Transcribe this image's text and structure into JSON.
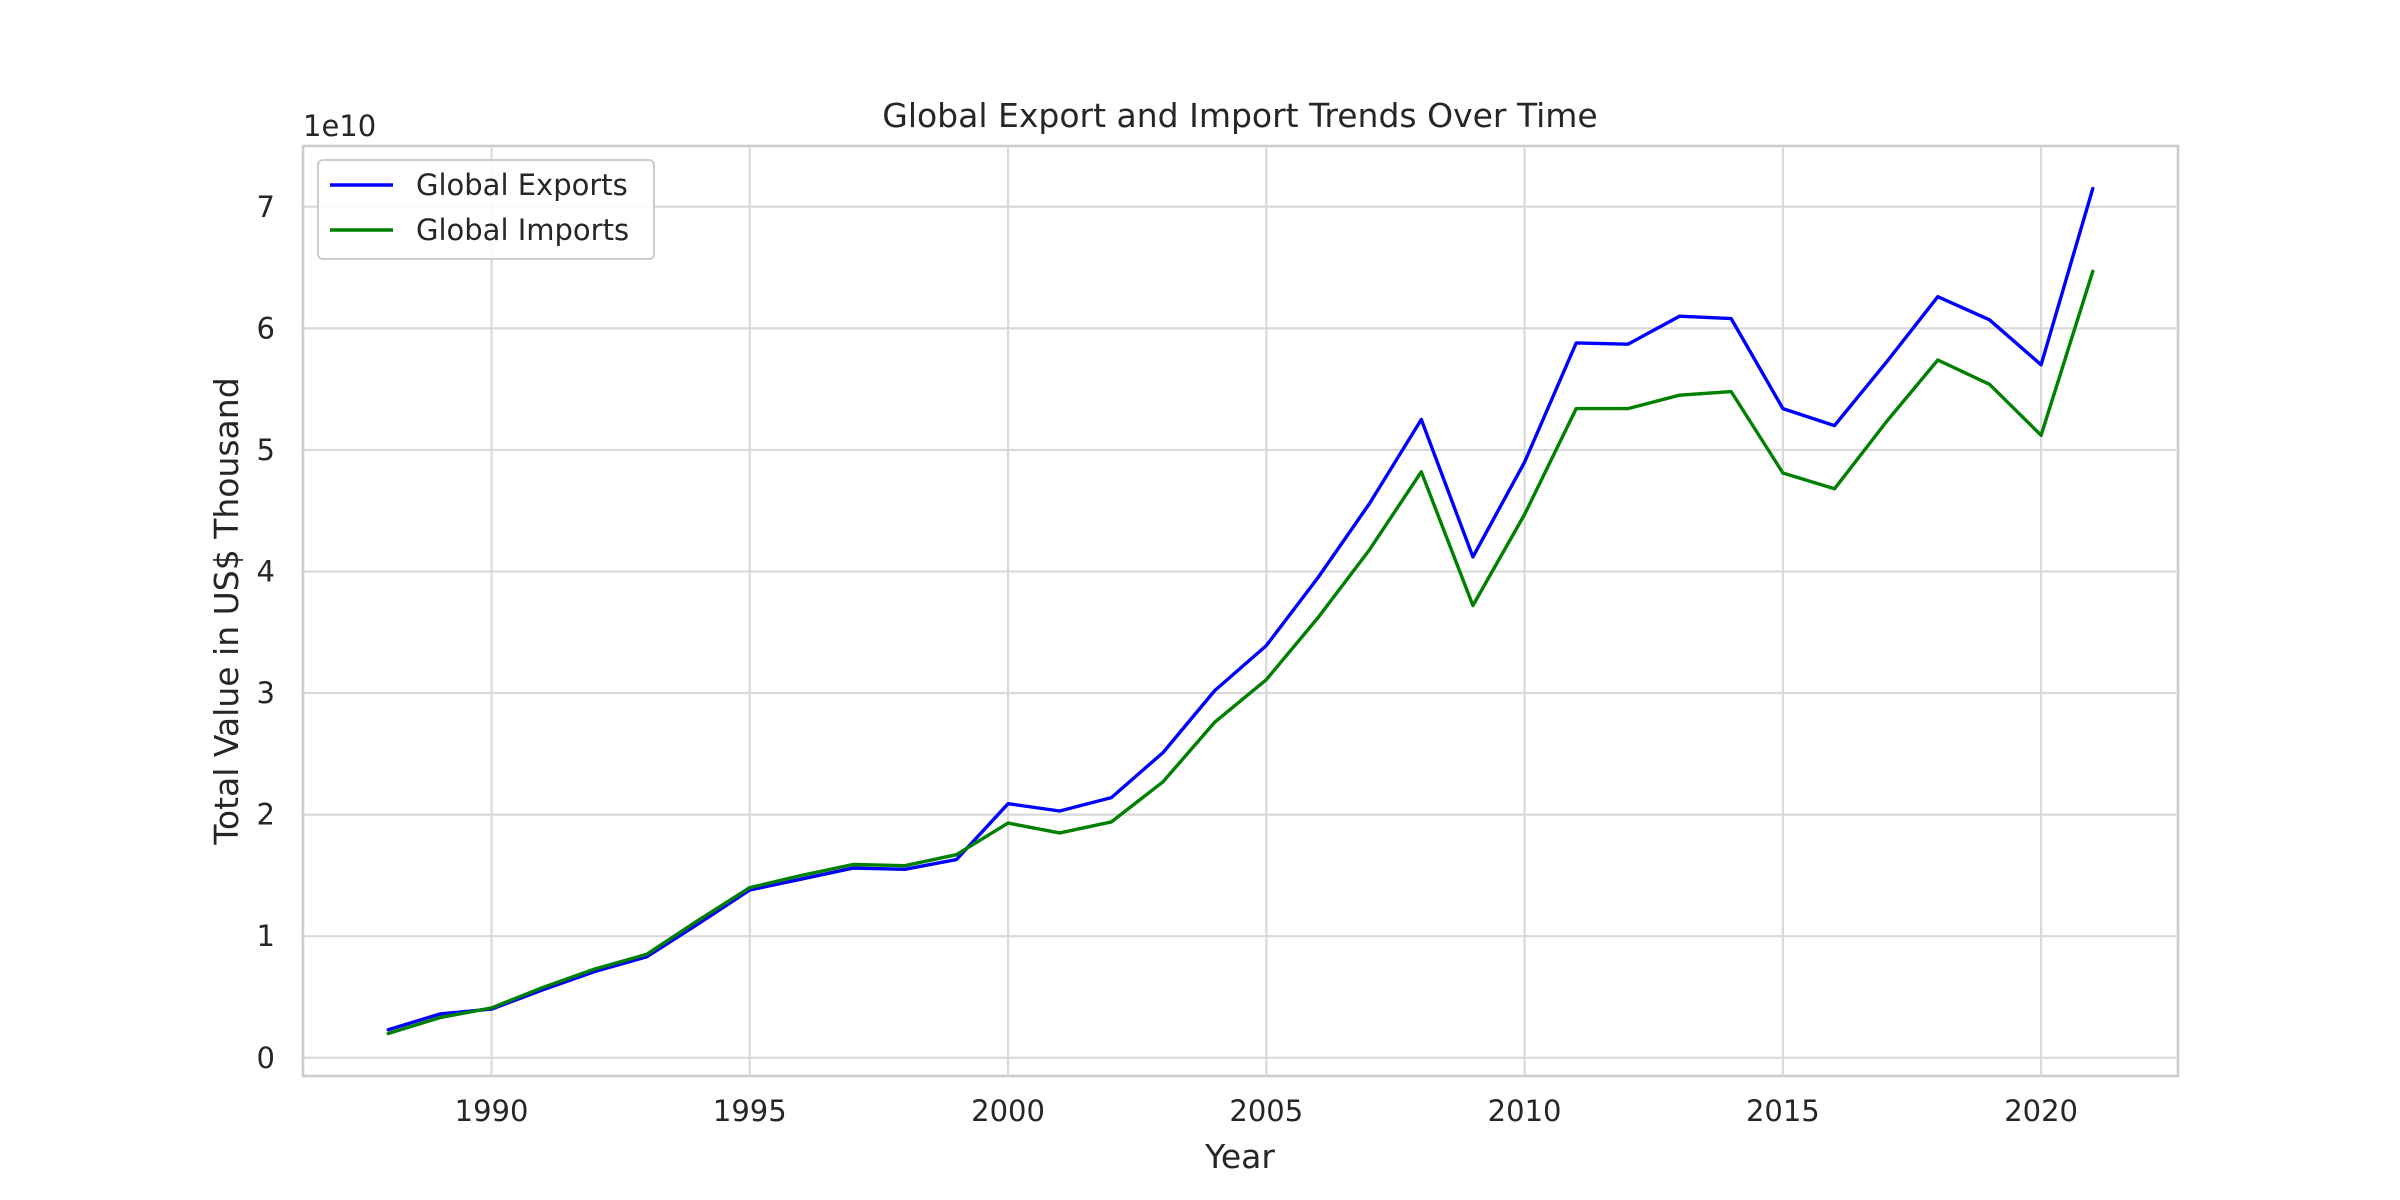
{
  "chart_data": {
    "type": "line",
    "title": "Global Export and Import Trends Over Time",
    "xlabel": "Year",
    "ylabel": "Total Value in US$ Thousand",
    "y_offset_label": "1e10",
    "xlim": [
      1986.35,
      2022.65
    ],
    "ylim": [
      -0.15,
      7.5
    ],
    "x_ticks": [
      1990,
      1995,
      2000,
      2005,
      2010,
      2015,
      2020
    ],
    "y_ticks": [
      0,
      1,
      2,
      3,
      4,
      5,
      6,
      7
    ],
    "grid": true,
    "legend_position": "top-left",
    "x": [
      1988,
      1989,
      1990,
      1991,
      1992,
      1993,
      1994,
      1995,
      1996,
      1997,
      1998,
      1999,
      2000,
      2001,
      2002,
      2003,
      2004,
      2005,
      2006,
      2007,
      2008,
      2009,
      2010,
      2011,
      2012,
      2013,
      2014,
      2015,
      2016,
      2017,
      2018,
      2019,
      2020,
      2021
    ],
    "series": [
      {
        "name": "Global Exports",
        "color": "#0000ff",
        "values": [
          0.23,
          0.36,
          0.4,
          0.56,
          0.71,
          0.83,
          1.1,
          1.38,
          1.47,
          1.56,
          1.55,
          1.63,
          2.09,
          2.03,
          2.14,
          2.51,
          3.02,
          3.39,
          3.95,
          4.56,
          5.25,
          4.12,
          4.9,
          5.88,
          5.87,
          6.1,
          6.08,
          5.34,
          5.2,
          5.72,
          6.26,
          6.07,
          5.7,
          7.15
        ]
      },
      {
        "name": "Global Imports",
        "color": "#008000",
        "values": [
          0.2,
          0.33,
          0.41,
          0.58,
          0.73,
          0.85,
          1.13,
          1.4,
          1.5,
          1.59,
          1.58,
          1.67,
          1.93,
          1.85,
          1.94,
          2.27,
          2.76,
          3.11,
          3.62,
          4.18,
          4.82,
          3.72,
          4.47,
          5.34,
          5.34,
          5.45,
          5.48,
          4.81,
          4.68,
          5.23,
          5.74,
          5.54,
          5.12,
          6.47
        ]
      }
    ]
  }
}
